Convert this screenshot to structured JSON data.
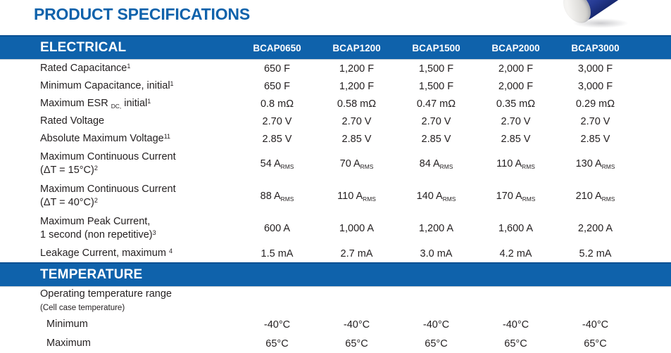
{
  "page": {
    "title": "PRODUCT SPECIFICATIONS"
  },
  "colors": {
    "section_bar_blue": "#0f62ab",
    "title_blue": "#0f62ab",
    "body_text": "#231f20",
    "capacitor_blue": "#273c95",
    "capacitor_end_gray": "#e4e3e0"
  },
  "product_image": {
    "alt": "blue cylindrical ultracapacitor cell"
  },
  "table": {
    "columns": [
      "BCAP0650",
      "BCAP1200",
      "BCAP1500",
      "BCAP2000",
      "BCAP3000"
    ],
    "sections": [
      {
        "header": "ELECTRICAL",
        "columns_in_bar": true,
        "rows": [
          {
            "label": [
              {
                "t": "Rated Capacitance"
              },
              {
                "sup": "1"
              }
            ],
            "values": [
              "650 F",
              "1,200 F",
              "1,500 F",
              "2,000 F",
              "3,000 F"
            ]
          },
          {
            "label": [
              {
                "t": "Minimum Capacitance, initial"
              },
              {
                "sup": "1"
              }
            ],
            "values": [
              "650 F",
              "1,200 F",
              "1,500 F",
              "2,000 F",
              "3,000 F"
            ]
          },
          {
            "label": [
              {
                "t": "Maximum ESR "
              },
              {
                "sub": "DC,"
              },
              {
                "t": " initial"
              },
              {
                "sup": "1"
              }
            ],
            "values": [
              "0.8 mΩ",
              "0.58 mΩ",
              "0.47 mΩ",
              "0.35 mΩ",
              "0.29 mΩ"
            ]
          },
          {
            "label": [
              {
                "t": "Rated Voltage"
              }
            ],
            "values": [
              "2.70 V",
              "2.70 V",
              "2.70 V",
              "2.70 V",
              "2.70 V"
            ]
          },
          {
            "label": [
              {
                "t": "Absolute Maximum Voltage"
              },
              {
                "sup": "11"
              }
            ],
            "values": [
              "2.85 V",
              "2.85 V",
              "2.85 V",
              "2.85 V",
              "2.85 V"
            ]
          },
          {
            "label": [
              {
                "t": "Maximum Continuous Current"
              },
              {
                "br": true
              },
              {
                "t": "(ΔT = 15°C)"
              },
              {
                "sup": "2"
              }
            ],
            "values": [
              [
                {
                  "t": "54 A"
                },
                {
                  "sub": "RMS"
                }
              ],
              [
                {
                  "t": "70 A"
                },
                {
                  "sub": "RMS"
                }
              ],
              [
                {
                  "t": "84 A"
                },
                {
                  "sub": "RMS"
                }
              ],
              [
                {
                  "t": "110 A"
                },
                {
                  "sub": "RMS"
                }
              ],
              [
                {
                  "t": "130 A"
                },
                {
                  "sub": "RMS"
                }
              ]
            ]
          },
          {
            "label": [
              {
                "t": "Maximum Continuous Current"
              },
              {
                "br": true
              },
              {
                "t": "(ΔT = 40°C)"
              },
              {
                "sup": "2"
              }
            ],
            "values": [
              [
                {
                  "t": "88 A"
                },
                {
                  "sub": "RMS"
                }
              ],
              [
                {
                  "t": "110 A"
                },
                {
                  "sub": "RMS"
                }
              ],
              [
                {
                  "t": "140 A"
                },
                {
                  "sub": "RMS"
                }
              ],
              [
                {
                  "t": "170 A"
                },
                {
                  "sub": "RMS"
                }
              ],
              [
                {
                  "t": "210 A"
                },
                {
                  "sub": "RMS"
                }
              ]
            ]
          },
          {
            "label": [
              {
                "t": "Maximum Peak Current,"
              },
              {
                "br": true
              },
              {
                "t": "1 second (non repetitive)"
              },
              {
                "sup": "3"
              }
            ],
            "values": [
              "600 A",
              "1,000 A",
              "1,200 A",
              "1,600 A",
              "2,200 A"
            ]
          },
          {
            "label": [
              {
                "t": "Leakage Current, maximum "
              },
              {
                "sup": "4"
              }
            ],
            "values": [
              "1.5 mA",
              "2.7 mA",
              "3.0 mA",
              "4.2 mA",
              "5.2 mA"
            ]
          }
        ]
      },
      {
        "header": "TEMPERATURE",
        "columns_in_bar": false,
        "rows": [
          {
            "label": [
              {
                "t": "Operating temperature range"
              },
              {
                "br": true
              },
              {
                "small": "(Cell case temperature)"
              }
            ],
            "values": [
              "",
              "",
              "",
              "",
              ""
            ]
          },
          {
            "label": [
              {
                "t": "Minimum"
              }
            ],
            "sub_item": true,
            "values": [
              "-40°C",
              "-40°C",
              "-40°C",
              "-40°C",
              "-40°C"
            ]
          },
          {
            "label": [
              {
                "t": "Maximum"
              }
            ],
            "sub_item": true,
            "values": [
              "65°C",
              "65°C",
              "65°C",
              "65°C",
              "65°C"
            ]
          }
        ]
      }
    ]
  }
}
